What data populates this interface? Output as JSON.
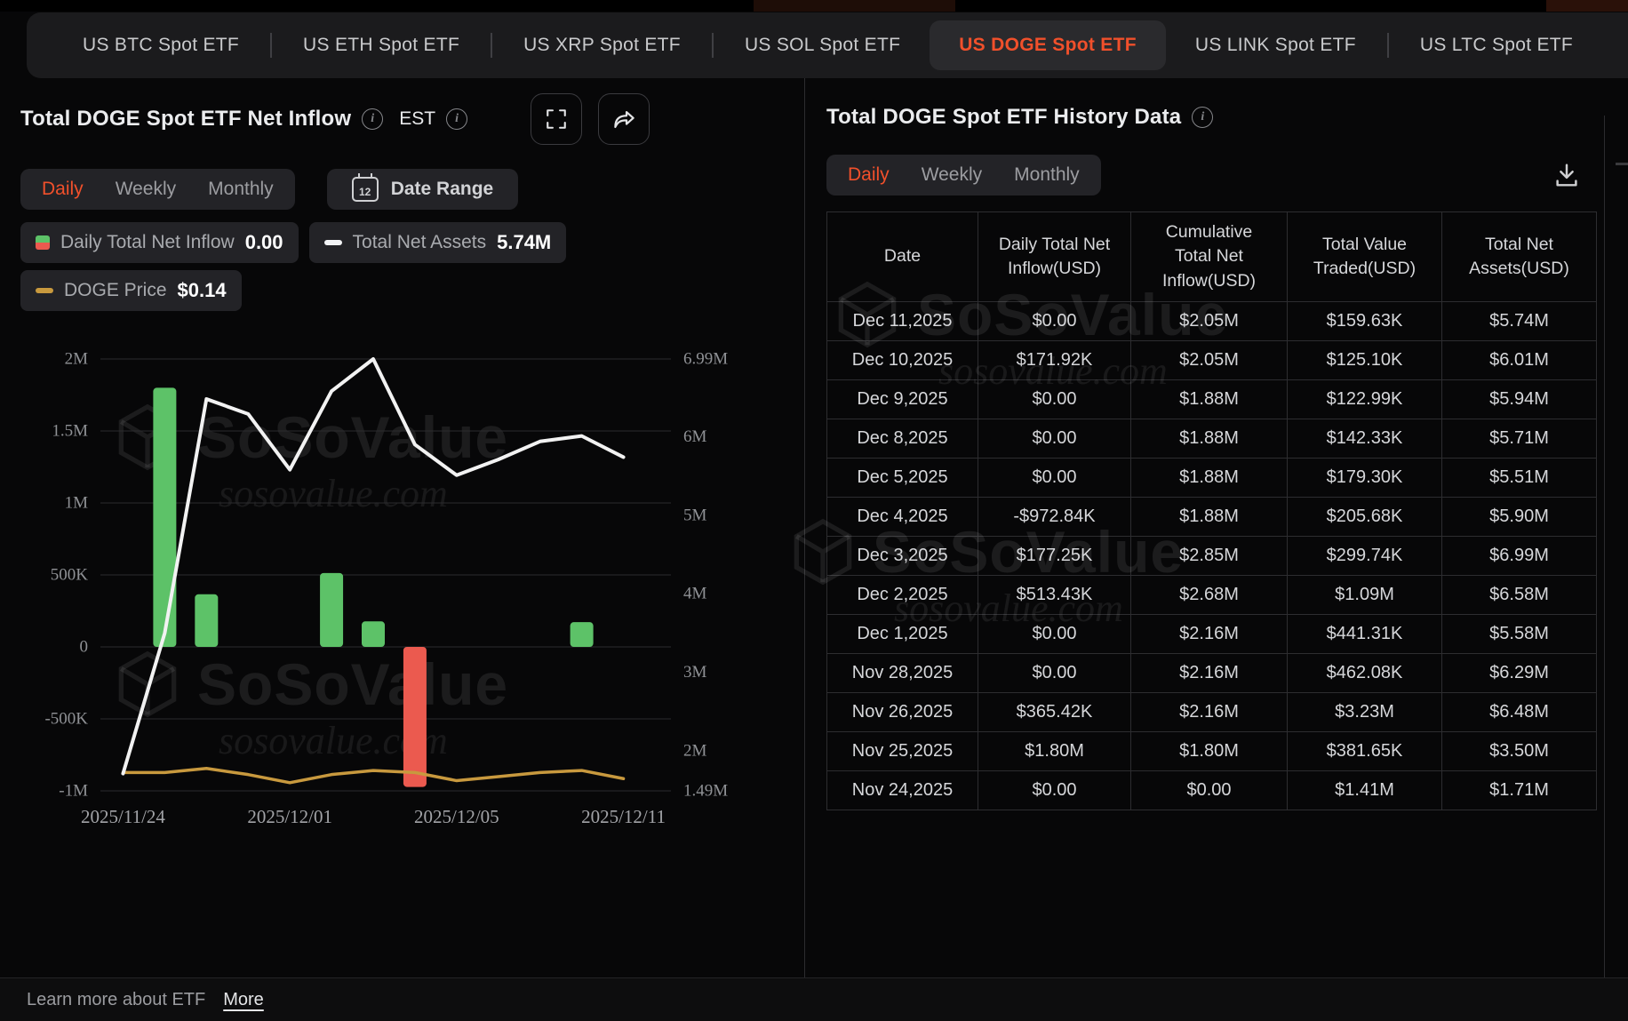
{
  "nav": {
    "tabs": [
      {
        "label": "US BTC Spot ETF",
        "active": false
      },
      {
        "label": "US ETH Spot ETF",
        "active": false
      },
      {
        "label": "US XRP Spot ETF",
        "active": false
      },
      {
        "label": "US SOL Spot ETF",
        "active": false
      },
      {
        "label": "US DOGE Spot ETF",
        "active": true
      },
      {
        "label": "US LINK Spot ETF",
        "active": false
      },
      {
        "label": "US LTC Spot ETF",
        "active": false
      }
    ]
  },
  "left_panel": {
    "title": "Total DOGE Spot ETF Net Inflow",
    "est_label": "EST",
    "period_tabs": [
      "Daily",
      "Weekly",
      "Monthly"
    ],
    "active_period": "Daily",
    "date_range_label": "Date Range",
    "calendar_icon_day": "12",
    "legend": [
      {
        "label": "Daily Total Net Inflow",
        "value": "0.00",
        "swatch": "bar-green-red"
      },
      {
        "label": "Total Net Assets",
        "value": "5.74M",
        "swatch": "dash-white"
      },
      {
        "label": "DOGE Price",
        "value": "$0.14",
        "swatch": "dash-gold"
      }
    ]
  },
  "chart_data": {
    "type": "bar+line",
    "x": [
      "2025/11/24",
      "2025/11/25",
      "2025/11/26",
      "2025/11/28",
      "2025/12/01",
      "2025/12/02",
      "2025/12/03",
      "2025/12/04",
      "2025/12/05",
      "2025/12/08",
      "2025/12/09",
      "2025/12/10",
      "2025/12/11"
    ],
    "x_axis_labels": [
      {
        "index": 0,
        "label": "2025/11/24"
      },
      {
        "index": 4,
        "label": "2025/12/01"
      },
      {
        "index": 8,
        "label": "2025/12/05"
      },
      {
        "index": 12,
        "label": "2025/12/11"
      }
    ],
    "series": [
      {
        "name": "Daily Total Net Inflow",
        "type": "bar",
        "axis": "left",
        "values": [
          0,
          1800000,
          365420,
          0,
          0,
          513430,
          177250,
          -972840,
          0,
          0,
          0,
          171920,
          0
        ]
      },
      {
        "name": "Total Net Assets",
        "type": "line",
        "axis": "right",
        "values": [
          1710000,
          3500000,
          6480000,
          6290000,
          5580000,
          6580000,
          6990000,
          5900000,
          5510000,
          5710000,
          5940000,
          6010000,
          5740000
        ]
      },
      {
        "name": "DOGE Price",
        "type": "line",
        "axis": "price",
        "values": [
          0.147,
          0.147,
          0.149,
          0.146,
          0.142,
          0.146,
          0.148,
          0.147,
          0.143,
          0.145,
          0.147,
          0.148,
          0.144
        ]
      }
    ],
    "left_axis": {
      "min": -1000000,
      "max": 2000000,
      "ticks": [
        "2M",
        "1.5M",
        "1M",
        "500K",
        "0",
        "-500K",
        "-1M"
      ]
    },
    "right_axis": {
      "min": 1490000,
      "max": 6990000,
      "ticks": [
        {
          "label": "6.99M",
          "value": 6990000
        },
        {
          "label": "6M",
          "value": 6000000
        },
        {
          "label": "5M",
          "value": 5000000
        },
        {
          "label": "4M",
          "value": 4000000
        },
        {
          "label": "3M",
          "value": 3000000
        },
        {
          "label": "2M",
          "value": 2000000
        },
        {
          "label": "1.49M",
          "value": 1490000
        }
      ]
    },
    "price_axis": {
      "min": 0.138,
      "max": 0.35
    },
    "grid": true
  },
  "right_panel": {
    "title": "Total DOGE Spot ETF History Data",
    "period_tabs": [
      "Daily",
      "Weekly",
      "Monthly"
    ],
    "active_period": "Daily",
    "table": {
      "columns": [
        "Date",
        "Daily Total Net Inflow(USD)",
        "Cumulative Total Net Inflow(USD)",
        "Total Value Traded(USD)",
        "Total Net Assets(USD)"
      ],
      "rows": [
        {
          "date": "Dec 11,2025",
          "inflow": "$0.00",
          "inflow_tone": "neutral",
          "cumulative": "$2.05M",
          "traded": "$159.63K",
          "assets": "$5.74M"
        },
        {
          "date": "Dec 10,2025",
          "inflow": "$171.92K",
          "inflow_tone": "positive",
          "cumulative": "$2.05M",
          "traded": "$125.10K",
          "assets": "$6.01M"
        },
        {
          "date": "Dec 9,2025",
          "inflow": "$0.00",
          "inflow_tone": "neutral",
          "cumulative": "$1.88M",
          "traded": "$122.99K",
          "assets": "$5.94M"
        },
        {
          "date": "Dec 8,2025",
          "inflow": "$0.00",
          "inflow_tone": "neutral",
          "cumulative": "$1.88M",
          "traded": "$142.33K",
          "assets": "$5.71M"
        },
        {
          "date": "Dec 5,2025",
          "inflow": "$0.00",
          "inflow_tone": "neutral",
          "cumulative": "$1.88M",
          "traded": "$179.30K",
          "assets": "$5.51M"
        },
        {
          "date": "Dec 4,2025",
          "inflow": "-$972.84K",
          "inflow_tone": "negative",
          "cumulative": "$1.88M",
          "traded": "$205.68K",
          "assets": "$5.90M"
        },
        {
          "date": "Dec 3,2025",
          "inflow": "$177.25K",
          "inflow_tone": "positive",
          "cumulative": "$2.85M",
          "traded": "$299.74K",
          "assets": "$6.99M"
        },
        {
          "date": "Dec 2,2025",
          "inflow": "$513.43K",
          "inflow_tone": "positive",
          "cumulative": "$2.68M",
          "traded": "$1.09M",
          "assets": "$6.58M"
        },
        {
          "date": "Dec 1,2025",
          "inflow": "$0.00",
          "inflow_tone": "neutral",
          "cumulative": "$2.16M",
          "traded": "$441.31K",
          "assets": "$5.58M"
        },
        {
          "date": "Nov 28,2025",
          "inflow": "$0.00",
          "inflow_tone": "neutral",
          "cumulative": "$2.16M",
          "traded": "$462.08K",
          "assets": "$6.29M"
        },
        {
          "date": "Nov 26,2025",
          "inflow": "$365.42K",
          "inflow_tone": "positive",
          "cumulative": "$2.16M",
          "traded": "$3.23M",
          "assets": "$6.48M"
        },
        {
          "date": "Nov 25,2025",
          "inflow": "$1.80M",
          "inflow_tone": "positive",
          "cumulative": "$1.80M",
          "traded": "$381.65K",
          "assets": "$3.50M"
        },
        {
          "date": "Nov 24,2025",
          "inflow": "$0.00",
          "inflow_tone": "neutral",
          "cumulative": "$0.00",
          "traded": "$1.41M",
          "assets": "$1.71M"
        }
      ]
    }
  },
  "footer": {
    "text": "Learn more about ETF",
    "link_label": "More"
  },
  "watermark": {
    "brand": "SoSoValue",
    "domain": "sosovalue.com"
  },
  "colors": {
    "accent_orange": "#F1502B",
    "positive_green": "#4CBB66",
    "negative_red": "#E14B41",
    "bar_green": "#5DC268",
    "bar_red": "#EB5A4F",
    "assets_line": "#F2F2F2",
    "price_line": "#C8993E"
  }
}
